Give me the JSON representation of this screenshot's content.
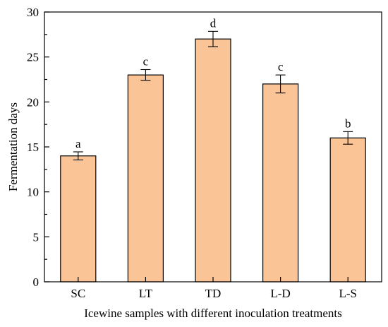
{
  "chart_data": {
    "type": "bar",
    "title": "",
    "xlabel": "Icewine samples with different inoculation treatments",
    "ylabel": "Fermentation days",
    "ylim": [
      0,
      30
    ],
    "yticks": [
      "0",
      "5",
      "10",
      "15",
      "20",
      "25",
      "30"
    ],
    "categories": [
      "SC",
      "LT",
      "TD",
      "L-D",
      "L-S"
    ],
    "values": [
      14,
      23,
      27,
      22,
      16
    ],
    "errors": [
      0.45,
      0.6,
      0.85,
      1.0,
      0.7
    ],
    "significance_labels": [
      "a",
      "c",
      "d",
      "c",
      "b"
    ],
    "bar_color": "#FAC497",
    "grid": false,
    "legend": "none"
  }
}
